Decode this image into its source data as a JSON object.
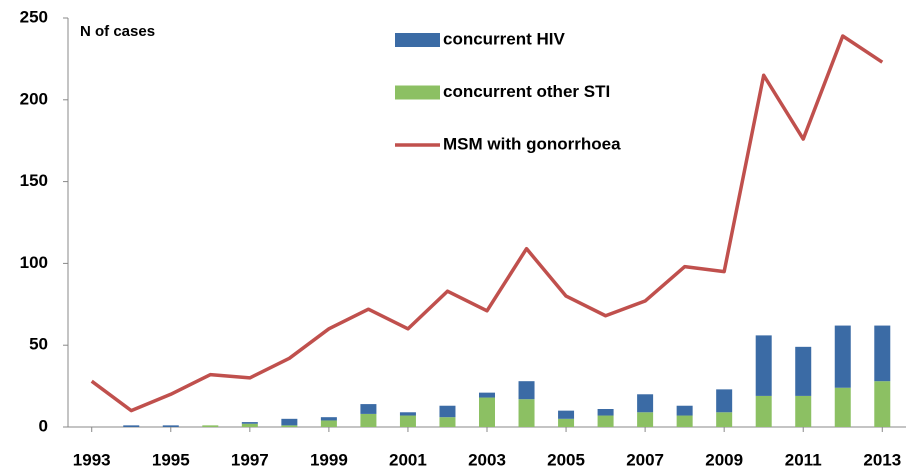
{
  "chart_data": {
    "type": "bar",
    "annotation": "N of cases",
    "x": [
      1993,
      1994,
      1995,
      1996,
      1997,
      1998,
      1999,
      2000,
      2001,
      2002,
      2003,
      2004,
      2005,
      2006,
      2007,
      2008,
      2009,
      2010,
      2011,
      2012,
      2013
    ],
    "series": [
      {
        "name": "concurrent HIV",
        "type": "bar",
        "color": "#3b6ba5",
        "values": [
          0,
          1,
          1,
          0,
          1,
          4,
          2,
          6,
          2,
          7,
          3,
          11,
          5,
          4,
          11,
          6,
          14,
          37,
          30,
          38,
          34
        ]
      },
      {
        "name": "concurrent other STI",
        "type": "bar",
        "color": "#8cc063",
        "values": [
          0,
          0,
          0,
          1,
          2,
          1,
          4,
          8,
          7,
          6,
          18,
          17,
          5,
          7,
          9,
          7,
          9,
          19,
          19,
          24,
          28
        ]
      },
      {
        "name": "MSM with gonorrhoea",
        "type": "line",
        "color": "#c0504d",
        "values": [
          28,
          10,
          20,
          32,
          30,
          42,
          60,
          72,
          60,
          83,
          71,
          109,
          80,
          68,
          77,
          98,
          95,
          215,
          176,
          239,
          223
        ]
      }
    ],
    "xlim": [
      1992.4,
      2013.6
    ],
    "xticks": [
      1993,
      1995,
      1997,
      1999,
      2001,
      2003,
      2005,
      2007,
      2009,
      2011,
      2013
    ],
    "ylim": [
      0,
      250
    ],
    "yticks": [
      0,
      50,
      100,
      150,
      200,
      250
    ],
    "grid": false
  }
}
